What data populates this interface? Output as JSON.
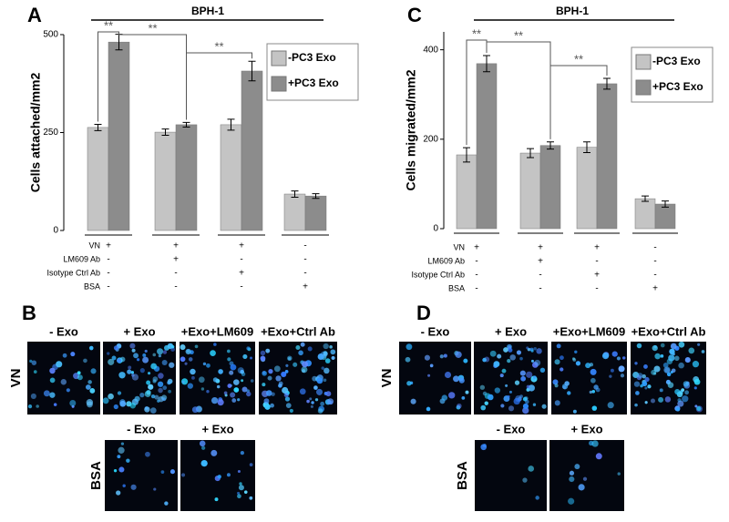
{
  "chart_data": [
    {
      "type": "bar",
      "panel_label": "A",
      "title": "BPH-1",
      "ylabel": "Cells attached/mm2",
      "categories": [
        null,
        null,
        null,
        null
      ],
      "series": [
        {
          "name": "-PC3 Exo",
          "color": "#c4c4c4",
          "values": [
            263,
            251,
            270,
            93
          ],
          "errors": [
            8,
            8,
            14,
            8
          ]
        },
        {
          "name": "+PC3 Exo",
          "color": "#8c8c8c",
          "values": [
            481,
            270,
            407,
            88
          ],
          "errors": [
            20,
            6,
            25,
            6
          ]
        }
      ],
      "ylim": [
        0,
        500
      ],
      "yticks": [
        0,
        250,
        500
      ],
      "conditions": [
        {
          "label": "VN",
          "marks": [
            "+",
            "+",
            "+",
            "-"
          ]
        },
        {
          "label": "LM609 Ab",
          "marks": [
            "-",
            "+",
            "-",
            "-"
          ]
        },
        {
          "label": "Isotype Ctrl Ab",
          "marks": [
            "-",
            "-",
            "+",
            "-"
          ]
        },
        {
          "label": "BSA",
          "marks": [
            "-",
            "-",
            "-",
            "+"
          ]
        }
      ],
      "annotations": [
        "**",
        "**",
        "**"
      ]
    },
    {
      "type": "bar",
      "panel_label": "C",
      "title": "BPH-1",
      "ylabel": "Cells migrated/mm2",
      "categories": [
        null,
        null,
        null,
        null
      ],
      "series": [
        {
          "name": "-PC3 Exo",
          "color": "#c4c4c4",
          "values": [
            165,
            169,
            182,
            67
          ],
          "errors": [
            16,
            10,
            12,
            6
          ]
        },
        {
          "name": "+PC3 Exo",
          "color": "#8c8c8c",
          "values": [
            369,
            186,
            324,
            55
          ],
          "errors": [
            18,
            8,
            12,
            7
          ]
        }
      ],
      "ylim": [
        0,
        440
      ],
      "yticks": [
        0,
        200,
        400
      ],
      "conditions": [
        {
          "label": "VN",
          "marks": [
            "+",
            "+",
            "+",
            "-"
          ]
        },
        {
          "label": "LM609 Ab",
          "marks": [
            "-",
            "+",
            "-",
            "-"
          ]
        },
        {
          "label": "Isotype Ctrl Ab",
          "marks": [
            "-",
            "-",
            "+",
            "-"
          ]
        },
        {
          "label": "BSA",
          "marks": [
            "-",
            "-",
            "-",
            "+"
          ]
        }
      ],
      "annotations": [
        "**",
        "**",
        "**"
      ]
    }
  ],
  "image_panels": [
    {
      "label": "B",
      "row_labels": [
        "VN",
        "BSA"
      ],
      "column_labels": [
        "- Exo",
        "+ Exo",
        "+Exo+LM609",
        "+Exo+Ctrl Ab"
      ],
      "bsa_column_labels": [
        "- Exo",
        "+ Exo"
      ]
    },
    {
      "label": "D",
      "row_labels": [
        "VN",
        "BSA"
      ],
      "column_labels": [
        "- Exo",
        "+ Exo",
        "+Exo+LM609",
        "+Exo+Ctrl Ab"
      ],
      "bsa_column_labels": [
        "- Exo",
        "+ Exo"
      ]
    }
  ]
}
